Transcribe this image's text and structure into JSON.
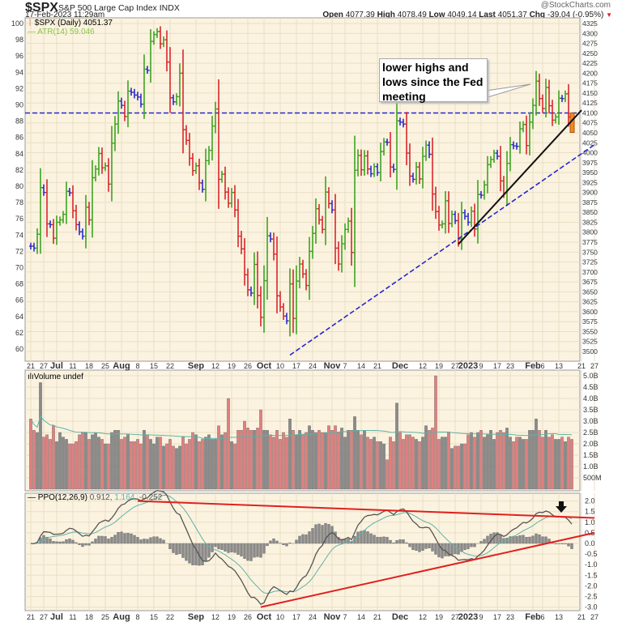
{
  "header": {
    "symbol": "$SPX",
    "name": "S&P 500 Large Cap Index",
    "exchange": "INDX",
    "timestamp": "17-Feb-2023 11:29am",
    "brand": "@StockCharts.com",
    "open_label": "Open",
    "open": "4077.39",
    "high_label": "High",
    "high": "4078.49",
    "low_label": "Low",
    "low": "4049.14",
    "last_label": "Last",
    "last": "4051.37",
    "chg_label": "Chg",
    "chg": "-39.04 (-0.95%)",
    "chg_arrow": "▼"
  },
  "legend": {
    "price": "$SPX (Daily) 4051.37",
    "atr": "ATR(14) 59.046",
    "volume": "Volume undef",
    "ppo_name": "PPO(12,26,9)",
    "ppo_v1": "0.912,",
    "ppo_v2": "1.164,",
    "ppo_v3": "-0.252"
  },
  "annotation": "lower highs and lows since the Fed meeting",
  "colors": {
    "up": "#3fa31f",
    "down": "#d9262b",
    "neutral": "#2b2bcc",
    "last": "#f08a1c",
    "bg": "#fbf3e0",
    "grid": "#eadfc4",
    "vol_up": "#8a8a8a",
    "vol_down": "#e08080",
    "ma": "#5fb3a8",
    "ppo": "#555555",
    "signal": "#5fb3a8",
    "trend_red": "#e02020",
    "trend_blue": "#2626cc"
  },
  "chart_data": [
    {
      "type": "ohlc",
      "panel": "price",
      "right_axis": {
        "min": 3500,
        "max": 4325,
        "step": 25
      },
      "left_axis": {
        "min": 60,
        "max": 100,
        "step": 2
      },
      "x_ticks": [
        [
          "2022-06-21",
          "21"
        ],
        [
          "2022-06-27",
          "27"
        ],
        [
          "2022-07-01",
          "Jul"
        ],
        [
          "2022-07-11",
          "11"
        ],
        [
          "2022-07-18",
          "18"
        ],
        [
          "2022-07-25",
          "25"
        ],
        [
          "2022-08-01",
          "Aug"
        ],
        [
          "2022-08-08",
          "8"
        ],
        [
          "2022-08-15",
          "15"
        ],
        [
          "2022-08-22",
          "22"
        ],
        [
          "2022-09-01",
          "Sep"
        ],
        [
          "2022-09-12",
          "12"
        ],
        [
          "2022-09-19",
          "19"
        ],
        [
          "2022-09-26",
          "26"
        ],
        [
          "2022-10-03",
          "Oct"
        ],
        [
          "2022-10-10",
          "10"
        ],
        [
          "2022-10-17",
          "17"
        ],
        [
          "2022-10-24",
          "24"
        ],
        [
          "2022-11-01",
          "Nov"
        ],
        [
          "2022-11-07",
          "7"
        ],
        [
          "2022-11-14",
          "14"
        ],
        [
          "2022-11-21",
          "21"
        ],
        [
          "2022-12-01",
          "Dec"
        ],
        [
          "2022-12-12",
          "12"
        ],
        [
          "2022-12-19",
          "19"
        ],
        [
          "2022-12-27",
          "27"
        ],
        [
          "2023-01-03",
          "2023"
        ],
        [
          "2023-01-09",
          "9"
        ],
        [
          "2023-01-17",
          "17"
        ],
        [
          "2023-01-23",
          "23"
        ],
        [
          "2023-02-01",
          "Feb"
        ],
        [
          "2023-02-06",
          "6"
        ],
        [
          "2023-02-13",
          "13"
        ],
        [
          "2023-02-21",
          "21"
        ],
        [
          "2023-02-27",
          "27"
        ]
      ],
      "bars": [
        [
          "2022-06-21",
          3765,
          3.1
        ],
        [
          "2022-06-22",
          3760,
          2.6
        ],
        [
          "2022-06-23",
          3795,
          2.5
        ],
        [
          "2022-06-24",
          3912,
          4.7
        ],
        [
          "2022-06-27",
          3900,
          2.3
        ],
        [
          "2022-06-28",
          3821,
          2.4
        ],
        [
          "2022-06-29",
          3819,
          2.2
        ],
        [
          "2022-06-30",
          3785,
          2.8
        ],
        [
          "2022-07-01",
          3825,
          2.1
        ],
        [
          "2022-07-05",
          3831,
          2.5
        ],
        [
          "2022-07-06",
          3845,
          2.3
        ],
        [
          "2022-07-07",
          3903,
          2.2
        ],
        [
          "2022-07-08",
          3899,
          2.0
        ],
        [
          "2022-07-11",
          3854,
          2.0
        ],
        [
          "2022-07-12",
          3819,
          2.1
        ],
        [
          "2022-07-13",
          3801,
          2.4
        ],
        [
          "2022-07-14",
          3790,
          2.5
        ],
        [
          "2022-07-15",
          3863,
          2.5
        ],
        [
          "2022-07-18",
          3831,
          2.2
        ],
        [
          "2022-07-19",
          3937,
          2.4
        ],
        [
          "2022-07-20",
          3959,
          2.5
        ],
        [
          "2022-07-21",
          3998,
          2.3
        ],
        [
          "2022-07-22",
          3962,
          2.2
        ],
        [
          "2022-07-25",
          3967,
          2.0
        ],
        [
          "2022-07-26",
          3921,
          2.0
        ],
        [
          "2022-07-27",
          4024,
          2.5
        ],
        [
          "2022-07-28",
          4072,
          2.6
        ],
        [
          "2022-07-29",
          4130,
          2.6
        ],
        [
          "2022-08-01",
          4119,
          2.2
        ],
        [
          "2022-08-02",
          4091,
          2.3
        ],
        [
          "2022-08-03",
          4155,
          2.4
        ],
        [
          "2022-08-04",
          4152,
          2.1
        ],
        [
          "2022-08-05",
          4145,
          2.1
        ],
        [
          "2022-08-08",
          4140,
          2.2
        ],
        [
          "2022-08-09",
          4122,
          2.0
        ],
        [
          "2022-08-10",
          4210,
          2.6
        ],
        [
          "2022-08-11",
          4207,
          2.4
        ],
        [
          "2022-08-12",
          4280,
          2.2
        ],
        [
          "2022-08-15",
          4297,
          2.0
        ],
        [
          "2022-08-16",
          4305,
          2.3
        ],
        [
          "2022-08-17",
          4274,
          2.3
        ],
        [
          "2022-08-18",
          4284,
          1.9
        ],
        [
          "2022-08-19",
          4228,
          2.0
        ],
        [
          "2022-08-22",
          4138,
          2.2
        ],
        [
          "2022-08-23",
          4128,
          1.9
        ],
        [
          "2022-08-24",
          4141,
          1.8
        ],
        [
          "2022-08-25",
          4200,
          1.9
        ],
        [
          "2022-08-26",
          4058,
          2.3
        ],
        [
          "2022-08-29",
          4031,
          2.0
        ],
        [
          "2022-08-30",
          3986,
          2.2
        ],
        [
          "2022-08-31",
          3955,
          2.5
        ],
        [
          "2022-09-01",
          3967,
          2.4
        ],
        [
          "2022-09-02",
          3924,
          2.1
        ],
        [
          "2022-09-06",
          3908,
          2.2
        ],
        [
          "2022-09-07",
          3980,
          2.3
        ],
        [
          "2022-09-08",
          4006,
          2.4
        ],
        [
          "2022-09-09",
          4067,
          2.2
        ],
        [
          "2022-09-12",
          4110,
          2.2
        ],
        [
          "2022-09-13",
          3933,
          2.8
        ],
        [
          "2022-09-14",
          3946,
          2.4
        ],
        [
          "2022-09-15",
          3901,
          2.5
        ],
        [
          "2022-09-16",
          3873,
          4.0
        ],
        [
          "2022-09-19",
          3900,
          2.1
        ],
        [
          "2022-09-20",
          3856,
          2.0
        ],
        [
          "2022-09-21",
          3790,
          2.6
        ],
        [
          "2022-09-22",
          3758,
          2.6
        ],
        [
          "2022-09-23",
          3693,
          3.0
        ],
        [
          "2022-09-26",
          3655,
          2.7
        ],
        [
          "2022-09-27",
          3647,
          2.6
        ],
        [
          "2022-09-28",
          3719,
          2.6
        ],
        [
          "2022-09-29",
          3641,
          2.7
        ],
        [
          "2022-09-30",
          3586,
          3.5
        ],
        [
          "2022-10-03",
          3678,
          2.6
        ],
        [
          "2022-10-04",
          3791,
          2.6
        ],
        [
          "2022-10-05",
          3783,
          2.4
        ],
        [
          "2022-10-06",
          3745,
          2.3
        ],
        [
          "2022-10-07",
          3640,
          2.6
        ],
        [
          "2022-10-10",
          3612,
          2.2
        ],
        [
          "2022-10-11",
          3589,
          2.5
        ],
        [
          "2022-10-12",
          3577,
          2.3
        ],
        [
          "2022-10-13",
          3670,
          3.1
        ],
        [
          "2022-10-14",
          3583,
          2.6
        ],
        [
          "2022-10-17",
          3677,
          2.4
        ],
        [
          "2022-10-18",
          3720,
          2.6
        ],
        [
          "2022-10-19",
          3695,
          2.4
        ],
        [
          "2022-10-20",
          3666,
          2.5
        ],
        [
          "2022-10-21",
          3752,
          2.8
        ],
        [
          "2022-10-24",
          3797,
          2.6
        ],
        [
          "2022-10-25",
          3859,
          2.5
        ],
        [
          "2022-10-26",
          3831,
          2.6
        ],
        [
          "2022-10-27",
          3807,
          2.5
        ],
        [
          "2022-10-28",
          3901,
          2.5
        ],
        [
          "2022-10-31",
          3872,
          2.8
        ],
        [
          "2022-11-01",
          3856,
          2.6
        ],
        [
          "2022-11-02",
          3760,
          2.8
        ],
        [
          "2022-11-03",
          3720,
          2.5
        ],
        [
          "2022-11-04",
          3771,
          2.7
        ],
        [
          "2022-11-07",
          3807,
          2.3
        ],
        [
          "2022-11-08",
          3828,
          2.6
        ],
        [
          "2022-11-09",
          3749,
          2.6
        ],
        [
          "2022-11-10",
          3956,
          3.2
        ],
        [
          "2022-11-11",
          3993,
          2.6
        ],
        [
          "2022-11-14",
          3957,
          2.4
        ],
        [
          "2022-11-15",
          3992,
          2.6
        ],
        [
          "2022-11-16",
          3959,
          2.3
        ],
        [
          "2022-11-17",
          3947,
          2.2
        ],
        [
          "2022-11-18",
          3965,
          2.3
        ],
        [
          "2022-11-21",
          3950,
          2.1
        ],
        [
          "2022-11-22",
          4003,
          2.1
        ],
        [
          "2022-11-23",
          4027,
          2.0
        ],
        [
          "2022-11-25",
          4026,
          1.3
        ],
        [
          "2022-11-28",
          3964,
          2.3
        ],
        [
          "2022-11-29",
          3958,
          2.1
        ],
        [
          "2022-11-30",
          4080,
          3.8
        ],
        [
          "2022-12-01",
          4077,
          2.5
        ],
        [
          "2022-12-02",
          4072,
          2.2
        ],
        [
          "2022-12-05",
          3999,
          2.4
        ],
        [
          "2022-12-06",
          3941,
          2.4
        ],
        [
          "2022-12-07",
          3933,
          2.3
        ],
        [
          "2022-12-08",
          3964,
          2.2
        ],
        [
          "2022-12-09",
          3934,
          2.1
        ],
        [
          "2022-12-12",
          3991,
          2.3
        ],
        [
          "2022-12-13",
          4019,
          2.8
        ],
        [
          "2022-12-14",
          3996,
          2.6
        ],
        [
          "2022-12-15",
          3896,
          2.7
        ],
        [
          "2022-12-16",
          3852,
          5.0
        ],
        [
          "2022-12-19",
          3818,
          2.2
        ],
        [
          "2022-12-20",
          3821,
          2.3
        ],
        [
          "2022-12-21",
          3879,
          2.3
        ],
        [
          "2022-12-22",
          3822,
          2.5
        ],
        [
          "2022-12-23",
          3845,
          1.8
        ],
        [
          "2022-12-27",
          3829,
          1.9
        ],
        [
          "2022-12-28",
          3783,
          1.9
        ],
        [
          "2022-12-29",
          3849,
          2.0
        ],
        [
          "2022-12-30",
          3840,
          2.0
        ],
        [
          "2023-01-03",
          3825,
          2.4
        ],
        [
          "2023-01-04",
          3853,
          2.5
        ],
        [
          "2023-01-05",
          3808,
          2.3
        ],
        [
          "2023-01-06",
          3895,
          2.5
        ],
        [
          "2023-01-09",
          3893,
          2.6
        ],
        [
          "2023-01-10",
          3919,
          2.3
        ],
        [
          "2023-01-11",
          3970,
          2.4
        ],
        [
          "2023-01-12",
          3983,
          2.6
        ],
        [
          "2023-01-13",
          3999,
          2.2
        ],
        [
          "2023-01-17",
          3991,
          2.5
        ],
        [
          "2023-01-18",
          3929,
          2.6
        ],
        [
          "2023-01-19",
          3899,
          2.5
        ],
        [
          "2023-01-20",
          3973,
          2.7
        ],
        [
          "2023-01-23",
          4020,
          2.3
        ],
        [
          "2023-01-24",
          4017,
          2.1
        ],
        [
          "2023-01-25",
          4016,
          2.3
        ],
        [
          "2023-01-26",
          4060,
          2.3
        ],
        [
          "2023-01-27",
          4071,
          2.2
        ],
        [
          "2023-01-30",
          4018,
          2.2
        ],
        [
          "2023-01-31",
          4077,
          2.6
        ],
        [
          "2023-02-01",
          4119,
          2.6
        ],
        [
          "2023-02-02",
          4180,
          3.1
        ],
        [
          "2023-02-03",
          4136,
          2.6
        ],
        [
          "2023-02-06",
          4111,
          2.3
        ],
        [
          "2023-02-07",
          4164,
          2.6
        ],
        [
          "2023-02-08",
          4118,
          2.3
        ],
        [
          "2023-02-09",
          4082,
          2.4
        ],
        [
          "2023-02-10",
          4090,
          2.2
        ],
        [
          "2023-02-13",
          4137,
          2.2
        ],
        [
          "2023-02-14",
          4136,
          2.3
        ],
        [
          "2023-02-15",
          4148,
          2.1
        ],
        [
          "2023-02-16",
          4090,
          2.3
        ],
        [
          "2023-02-17",
          4051,
          2.2
        ]
      ],
      "lines": [
        {
          "kind": "horizontal",
          "style": "dashed",
          "color": "blue",
          "price": 4100
        },
        {
          "kind": "trend",
          "style": "dashed",
          "color": "blue",
          "from": [
            "2022-10-13",
            3491
          ],
          "to": [
            "2023-02-27",
            4020
          ]
        },
        {
          "kind": "trend",
          "style": "solid",
          "color": "black",
          "from": [
            "2022-12-28",
            3770
          ],
          "to": [
            "2023-02-21",
            4107
          ]
        }
      ]
    },
    {
      "type": "bar",
      "panel": "volume",
      "axis_ticks": [
        "500M",
        "1.0B",
        "1.5B",
        "2.0B",
        "2.5B",
        "3.0B",
        "3.5B",
        "4.0B",
        "4.5B",
        "5.0B"
      ],
      "ylim": [
        0,
        5.0
      ]
    },
    {
      "type": "line",
      "panel": "ppo",
      "params": [
        12,
        26,
        9
      ],
      "ylim": [
        -3.0,
        2.0
      ],
      "axis_ticks": [
        "2.0",
        "1.5",
        "1.0",
        "0.5",
        "0.0",
        "-0.5",
        "-1.0",
        "-1.5",
        "-2.0",
        "-2.5",
        "-3.0"
      ],
      "lines": [
        {
          "color": "red",
          "from": [
            "2022-08-08",
            2.0
          ],
          "to": [
            "2023-02-27",
            1.2
          ]
        },
        {
          "color": "red",
          "from": [
            "2022-09-30",
            -3.0
          ],
          "to": [
            "2023-02-27",
            0.5
          ]
        }
      ]
    }
  ]
}
